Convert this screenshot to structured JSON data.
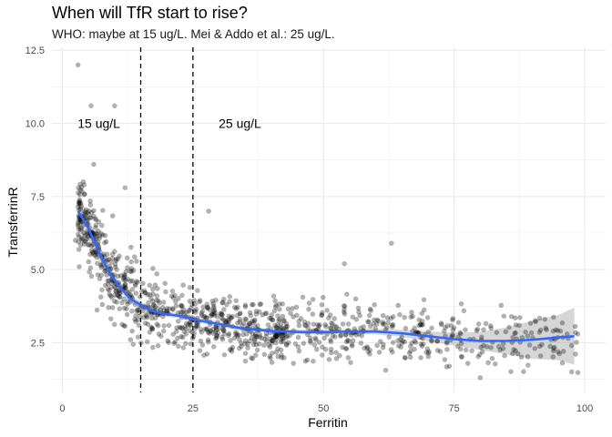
{
  "chart_data": {
    "type": "scatter",
    "title": "When will TfR start to rise?",
    "subtitle": "WHO: maybe at 15 ug/L. Mei & Addo et al.: 25 ug/L.",
    "xlabel": "Ferritin",
    "ylabel": "TransferrinR",
    "xlim": [
      -2,
      104
    ],
    "ylim": [
      0.8,
      12.6
    ],
    "x_ticks": [
      0,
      25,
      50,
      75,
      100
    ],
    "y_ticks": [
      2.5,
      5.0,
      7.5,
      10.0,
      12.5
    ],
    "x_tick_labels": [
      "0",
      "25",
      "50",
      "75",
      "100"
    ],
    "y_tick_labels": [
      "2.5",
      "5.0",
      "7.5",
      "10.0",
      "12.5"
    ],
    "grid": true,
    "vlines": [
      15,
      25
    ],
    "annotations": [
      {
        "text": "15 ug/L",
        "x": 7,
        "y": 10.0
      },
      {
        "text": "25 ug/L",
        "x": 34,
        "y": 10.0
      }
    ],
    "point_color": "#000000",
    "point_alpha": 0.3,
    "point_count_approx": 1100,
    "smooth_color": "#3366FF",
    "ribbon_color": "#999999",
    "highlighted_points": [
      {
        "x": 3,
        "y": 12.0
      },
      {
        "x": 5.5,
        "y": 10.6
      },
      {
        "x": 10,
        "y": 10.6
      },
      {
        "x": 4,
        "y": 8.0
      },
      {
        "x": 6,
        "y": 8.6
      },
      {
        "x": 12,
        "y": 7.8
      },
      {
        "x": 2.5,
        "y": 6.0
      },
      {
        "x": 28,
        "y": 7.0
      },
      {
        "x": 63,
        "y": 5.9
      },
      {
        "x": 54,
        "y": 5.2
      },
      {
        "x": 97.5,
        "y": 1.5
      },
      {
        "x": 80,
        "y": 1.3
      }
    ],
    "smooth": {
      "x": [
        3,
        5,
        7,
        9,
        11,
        13,
        15,
        17,
        19,
        21,
        23,
        25,
        28,
        31,
        34,
        37,
        40,
        43,
        46,
        50,
        55,
        60,
        65,
        70,
        75,
        80,
        85,
        90,
        95,
        98
      ],
      "y": [
        7.0,
        6.4,
        5.6,
        4.9,
        4.4,
        4.0,
        3.8,
        3.6,
        3.5,
        3.45,
        3.4,
        3.3,
        3.2,
        3.1,
        3.0,
        2.95,
        2.9,
        2.88,
        2.86,
        2.86,
        2.88,
        2.88,
        2.82,
        2.72,
        2.62,
        2.56,
        2.56,
        2.6,
        2.68,
        2.72
      ]
    },
    "ribbon": {
      "x": [
        3,
        5,
        7,
        9,
        11,
        13,
        15,
        17,
        19,
        21,
        23,
        25,
        28,
        31,
        34,
        37,
        40,
        43,
        46,
        50,
        55,
        60,
        65,
        70,
        75,
        80,
        85,
        90,
        95,
        98
      ],
      "lower": [
        6.3,
        6.0,
        5.3,
        4.7,
        4.25,
        3.88,
        3.7,
        3.5,
        3.42,
        3.37,
        3.32,
        3.22,
        3.12,
        3.02,
        2.93,
        2.88,
        2.84,
        2.8,
        2.78,
        2.78,
        2.8,
        2.78,
        2.7,
        2.55,
        2.4,
        2.25,
        2.1,
        1.95,
        1.9,
        1.75
      ],
      "upper": [
        7.7,
        6.8,
        5.9,
        5.1,
        4.55,
        4.12,
        3.9,
        3.7,
        3.58,
        3.53,
        3.48,
        3.38,
        3.28,
        3.18,
        3.07,
        3.02,
        2.96,
        2.96,
        2.94,
        2.94,
        2.96,
        2.98,
        2.94,
        2.89,
        2.84,
        2.87,
        3.02,
        3.25,
        3.45,
        3.7
      ]
    }
  }
}
